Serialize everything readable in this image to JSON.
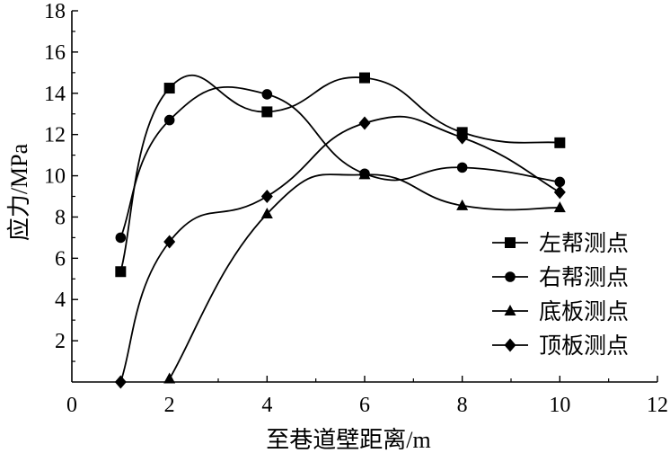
{
  "chart_data": {
    "type": "line",
    "title": "",
    "xlabel": "至巷道壁距离/m",
    "ylabel": "应力/MPa",
    "xlim": [
      0,
      12
    ],
    "ylim": [
      0,
      18
    ],
    "x_ticks": [
      "0",
      "2",
      "4",
      "6",
      "8",
      "10",
      "12"
    ],
    "y_ticks": [
      "2",
      "4",
      "6",
      "8",
      "10",
      "12",
      "14",
      "16",
      "18"
    ],
    "grid": false,
    "legend_position": "right",
    "series": [
      {
        "name": "左帮测点",
        "marker": "square",
        "color": "#000000",
        "x": [
          1,
          2,
          4,
          6,
          8,
          10
        ],
        "y": [
          5.35,
          14.25,
          13.1,
          14.75,
          12.1,
          11.6
        ]
      },
      {
        "name": "右帮测点",
        "marker": "circle",
        "color": "#000000",
        "x": [
          1,
          2,
          4,
          6,
          8,
          10
        ],
        "y": [
          7.0,
          12.7,
          13.95,
          10.1,
          10.4,
          9.7
        ]
      },
      {
        "name": "底板测点",
        "marker": "triangle",
        "color": "#000000",
        "x": [
          2,
          4,
          6,
          8,
          10
        ],
        "y": [
          0.15,
          8.15,
          10.05,
          8.55,
          8.45
        ]
      },
      {
        "name": "顶板测点",
        "marker": "diamond",
        "color": "#000000",
        "x": [
          1,
          2,
          4,
          6,
          8,
          10
        ],
        "y": [
          0.0,
          6.8,
          9.0,
          12.55,
          11.85,
          9.2
        ]
      }
    ]
  }
}
